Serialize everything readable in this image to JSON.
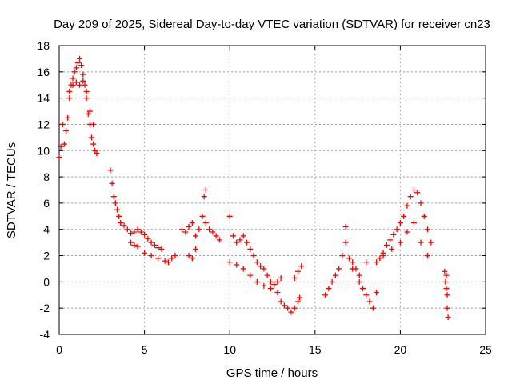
{
  "chart_data": {
    "type": "scatter",
    "title": "Day 209 of 2025, Sidereal Day-to-day VTEC variation (SDTVAR) for receiver cn23",
    "xlabel": "GPS time / hours",
    "ylabel": "SDTVAR / TECUs",
    "xlim": [
      0,
      25
    ],
    "ylim": [
      -4,
      18
    ],
    "xticks": [
      0,
      5,
      10,
      15,
      20,
      25
    ],
    "yticks": [
      -4,
      -2,
      0,
      2,
      4,
      6,
      8,
      10,
      12,
      14,
      16,
      18
    ],
    "grid": true,
    "marker": "+",
    "color": "#ff0000",
    "series": [
      {
        "name": "SDTVAR",
        "x": [
          0.0,
          0.1,
          0.2,
          0.3,
          0.4,
          0.5,
          0.6,
          0.7,
          0.8,
          0.9,
          1.0,
          1.1,
          1.2,
          1.3,
          1.4,
          1.5,
          1.6,
          1.7,
          1.8,
          1.9,
          2.0,
          2.1,
          2.2,
          0.6,
          0.8,
          1.0,
          1.2,
          1.4,
          1.6,
          1.8,
          2.0,
          3.0,
          3.1,
          3.2,
          3.3,
          3.4,
          3.5,
          3.6,
          3.8,
          4.0,
          4.2,
          4.4,
          4.6,
          4.8,
          5.0,
          5.2,
          5.4,
          5.6,
          5.8,
          6.0,
          4.2,
          4.4,
          4.6,
          5.0,
          5.4,
          5.8,
          6.2,
          6.4,
          6.6,
          6.8,
          7.2,
          7.4,
          7.6,
          7.8,
          8.0,
          8.2,
          8.4,
          8.6,
          8.8,
          9.0,
          9.2,
          9.4,
          7.6,
          7.8,
          8.0,
          8.5,
          8.6,
          10.0,
          10.2,
          10.4,
          10.6,
          10.8,
          11.0,
          11.2,
          11.4,
          11.6,
          11.8,
          12.0,
          12.2,
          12.4,
          12.6,
          12.8,
          13.0,
          10.0,
          10.4,
          10.8,
          11.2,
          11.6,
          12.0,
          12.4,
          12.8,
          13.0,
          13.2,
          13.4,
          13.6,
          13.8,
          14.0,
          14.1,
          13.8,
          14.0,
          14.2,
          15.6,
          15.8,
          16.0,
          16.2,
          16.4,
          16.6,
          16.8,
          17.0,
          17.2,
          17.4,
          17.6,
          17.8,
          18.0,
          18.2,
          18.4,
          16.8,
          17.2,
          17.6,
          18.0,
          18.6,
          18.6,
          18.8,
          19.0,
          19.2,
          19.4,
          19.6,
          19.8,
          20.0,
          20.2,
          20.4,
          20.6,
          20.8,
          21.0,
          21.2,
          21.4,
          21.6,
          21.8,
          19.0,
          19.5,
          20.0,
          20.4,
          20.8,
          21.2,
          21.6,
          22.6,
          22.65,
          22.7,
          22.75,
          22.8,
          22.7,
          22.75
        ],
        "y": [
          9.5,
          10.3,
          12.0,
          10.5,
          11.5,
          12.5,
          14.0,
          15.0,
          15.5,
          16.0,
          16.3,
          16.7,
          17.0,
          16.5,
          15.8,
          15.0,
          14.0,
          12.8,
          12.0,
          11.0,
          10.5,
          10.0,
          9.8,
          14.5,
          15.0,
          15.2,
          15.0,
          15.3,
          14.5,
          13.0,
          12.0,
          8.5,
          7.5,
          6.5,
          6.0,
          5.5,
          5.0,
          4.5,
          4.3,
          4.0,
          3.7,
          3.8,
          4.0,
          3.8,
          3.6,
          3.3,
          3.0,
          2.8,
          2.6,
          2.5,
          3.0,
          2.8,
          2.7,
          2.2,
          2.0,
          1.8,
          1.6,
          1.5,
          1.8,
          2.0,
          4.0,
          3.8,
          4.2,
          4.5,
          3.5,
          4.0,
          5.0,
          4.5,
          4.0,
          3.8,
          3.5,
          3.2,
          2.0,
          1.8,
          2.5,
          6.5,
          7.0,
          5.0,
          3.5,
          3.0,
          3.2,
          3.5,
          3.0,
          2.5,
          2.0,
          1.5,
          1.2,
          1.0,
          0.5,
          0.0,
          -0.2,
          0.0,
          0.3,
          1.5,
          1.3,
          1.0,
          0.5,
          0.0,
          -0.3,
          -0.5,
          -0.8,
          -1.5,
          -1.8,
          -2.0,
          -2.3,
          -2.0,
          -1.5,
          -1.2,
          0.3,
          0.8,
          1.2,
          -1.0,
          -0.5,
          0.0,
          0.5,
          1.0,
          2.0,
          3.0,
          1.8,
          1.5,
          1.0,
          0.0,
          -0.5,
          -1.0,
          -1.5,
          -2.0,
          4.2,
          1.0,
          0.5,
          1.5,
          -0.8,
          1.5,
          1.8,
          2.2,
          2.8,
          3.2,
          3.6,
          4.0,
          4.5,
          5.0,
          5.8,
          6.5,
          7.0,
          6.8,
          6.0,
          5.0,
          4.0,
          3.0,
          2.0,
          2.5,
          3.0,
          3.8,
          4.5,
          3.0,
          2.0,
          0.8,
          0.0,
          -0.5,
          -2.0,
          -2.7,
          0.5,
          -1.0
        ]
      }
    ]
  }
}
